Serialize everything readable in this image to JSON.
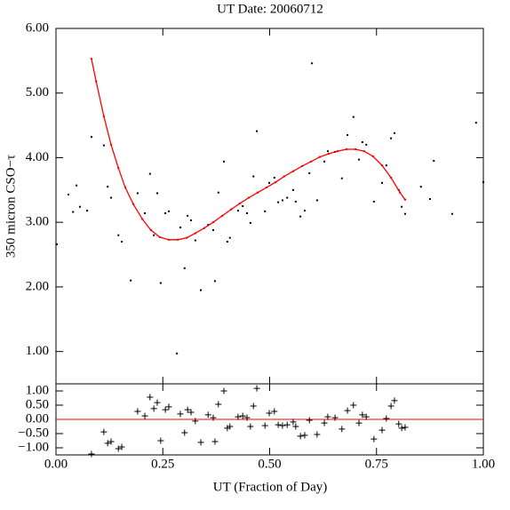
{
  "chart_data": [
    {
      "type": "scatter",
      "title": "UT Date: 20060712",
      "y_label": "350 micron CSO−τ",
      "xlim": [
        0,
        1
      ],
      "xticks": [
        0,
        0.25,
        0.5,
        0.75,
        1
      ],
      "ylim": [
        0.5,
        6
      ],
      "yticks": [
        {
          "value": 1,
          "label": "1.00"
        },
        {
          "value": 2,
          "label": "2.00"
        },
        {
          "value": 3,
          "label": "3.00"
        },
        {
          "value": 4,
          "label": "4.00"
        },
        {
          "value": 5,
          "label": "5.00"
        },
        {
          "value": 6,
          "label": "6.00"
        }
      ],
      "series": [
        {
          "marker": "point",
          "color": "#000000",
          "x": [
            0.002,
            0.029,
            0.04,
            0.048,
            0.056,
            0.073,
            0.083,
            0.112,
            0.121,
            0.129,
            0.146,
            0.154,
            0.175,
            0.191,
            0.208,
            0.22,
            0.229,
            0.237,
            0.245,
            0.256,
            0.264,
            0.283,
            0.291,
            0.301,
            0.308,
            0.316,
            0.326,
            0.339,
            0.356,
            0.368,
            0.372,
            0.38,
            0.393,
            0.401,
            0.407,
            0.426,
            0.437,
            0.447,
            0.455,
            0.462,
            0.47,
            0.489,
            0.499,
            0.511,
            0.52,
            0.53,
            0.541,
            0.555,
            0.561,
            0.572,
            0.582,
            0.593,
            0.599,
            0.611,
            0.628,
            0.636,
            0.653,
            0.669,
            0.682,
            0.696,
            0.709,
            0.717,
            0.726,
            0.744,
            0.763,
            0.773,
            0.784,
            0.792,
            0.802,
            0.809,
            0.817,
            0.854,
            0.875,
            0.884,
            0.927,
            0.983,
            1.0
          ],
          "values": [
            2.66,
            3.43,
            3.16,
            3.57,
            3.24,
            3.18,
            4.32,
            4.19,
            3.55,
            3.38,
            2.8,
            2.7,
            2.1,
            3.45,
            3.14,
            3.75,
            2.8,
            3.45,
            2.06,
            3.14,
            3.17,
            0.97,
            2.92,
            2.29,
            3.1,
            3.03,
            2.72,
            1.95,
            2.96,
            2.88,
            2.09,
            3.46,
            3.94,
            2.7,
            2.76,
            3.18,
            3.25,
            3.14,
            2.99,
            3.71,
            4.41,
            3.17,
            3.61,
            3.69,
            3.31,
            3.34,
            3.38,
            3.5,
            3.32,
            3.09,
            3.18,
            3.76,
            5.46,
            3.34,
            3.94,
            4.1,
            4.09,
            3.68,
            4.35,
            4.63,
            3.97,
            4.24,
            4.2,
            3.32,
            3.61,
            3.88,
            4.3,
            4.38,
            3.5,
            3.24,
            3.13,
            3.55,
            3.36,
            3.95,
            3.13,
            4.54,
            3.62
          ]
        },
        {
          "marker": "line",
          "color": "#ff0000",
          "x": [
            0.083,
            0.094,
            0.112,
            0.129,
            0.146,
            0.162,
            0.181,
            0.202,
            0.222,
            0.243,
            0.264,
            0.285,
            0.306,
            0.326,
            0.347,
            0.368,
            0.389,
            0.41,
            0.43,
            0.451,
            0.472,
            0.493,
            0.514,
            0.534,
            0.555,
            0.576,
            0.597,
            0.617,
            0.638,
            0.659,
            0.68,
            0.701,
            0.721,
            0.742,
            0.763,
            0.784,
            0.805,
            0.817
          ],
          "values": [
            5.53,
            5.18,
            4.64,
            4.2,
            3.84,
            3.54,
            3.28,
            3.05,
            2.88,
            2.77,
            2.73,
            2.73,
            2.76,
            2.83,
            2.91,
            3.0,
            3.1,
            3.2,
            3.29,
            3.38,
            3.46,
            3.54,
            3.62,
            3.71,
            3.79,
            3.87,
            3.94,
            4.01,
            4.06,
            4.1,
            4.13,
            4.13,
            4.1,
            4.02,
            3.88,
            3.69,
            3.46,
            3.35
          ]
        }
      ]
    },
    {
      "type": "scatter",
      "x_label": "UT (Fraction of Day)",
      "xlim": [
        0,
        1
      ],
      "xticks": [
        {
          "value": 0,
          "label": "0.00"
        },
        {
          "value": 0.25,
          "label": "0.25"
        },
        {
          "value": 0.5,
          "label": "0.50"
        },
        {
          "value": 0.75,
          "label": "0.75"
        },
        {
          "value": 1,
          "label": "1.00"
        }
      ],
      "ylim": [
        -1.25,
        1.25
      ],
      "yticks": [
        {
          "value": 1,
          "label": "1.00"
        },
        {
          "value": 0.5,
          "label": "0.50"
        },
        {
          "value": 0,
          "label": "0.00"
        },
        {
          "value": -0.5,
          "label": "−0.50"
        },
        {
          "value": -1,
          "label": "−1.00"
        }
      ],
      "reference_line": 0,
      "reference_color": "#ff0000",
      "series": [
        {
          "marker": "plus",
          "color": "#000000",
          "x": [
            0.083,
            0.112,
            0.121,
            0.129,
            0.146,
            0.154,
            0.191,
            0.208,
            0.22,
            0.229,
            0.237,
            0.245,
            0.256,
            0.264,
            0.291,
            0.301,
            0.308,
            0.316,
            0.326,
            0.339,
            0.356,
            0.368,
            0.372,
            0.38,
            0.393,
            0.401,
            0.407,
            0.426,
            0.437,
            0.447,
            0.455,
            0.462,
            0.47,
            0.489,
            0.499,
            0.511,
            0.52,
            0.53,
            0.541,
            0.555,
            0.561,
            0.572,
            0.582,
            0.593,
            0.611,
            0.628,
            0.636,
            0.653,
            0.669,
            0.682,
            0.696,
            0.709,
            0.717,
            0.726,
            0.744,
            0.763,
            0.773,
            0.784,
            0.792,
            0.802,
            0.809,
            0.817
          ],
          "values": [
            -1.22,
            -0.44,
            -0.84,
            -0.78,
            -1.03,
            -0.97,
            0.28,
            0.12,
            0.78,
            0.38,
            0.59,
            -0.75,
            0.34,
            0.44,
            0.19,
            -0.47,
            0.34,
            0.25,
            -0.06,
            -0.81,
            0.16,
            0.06,
            -0.78,
            0.53,
            1.0,
            -0.31,
            -0.25,
            0.09,
            0.12,
            0.06,
            -0.25,
            0.47,
            1.09,
            -0.22,
            0.22,
            0.28,
            -0.19,
            -0.22,
            -0.19,
            -0.09,
            -0.25,
            -0.59,
            -0.56,
            -0.03,
            -0.53,
            -0.13,
            0.09,
            0.06,
            -0.34,
            0.31,
            0.5,
            -0.13,
            0.16,
            0.09,
            -0.69,
            -0.38,
            0.03,
            0.47,
            0.66,
            -0.16,
            -0.31,
            -0.28
          ]
        }
      ]
    }
  ]
}
